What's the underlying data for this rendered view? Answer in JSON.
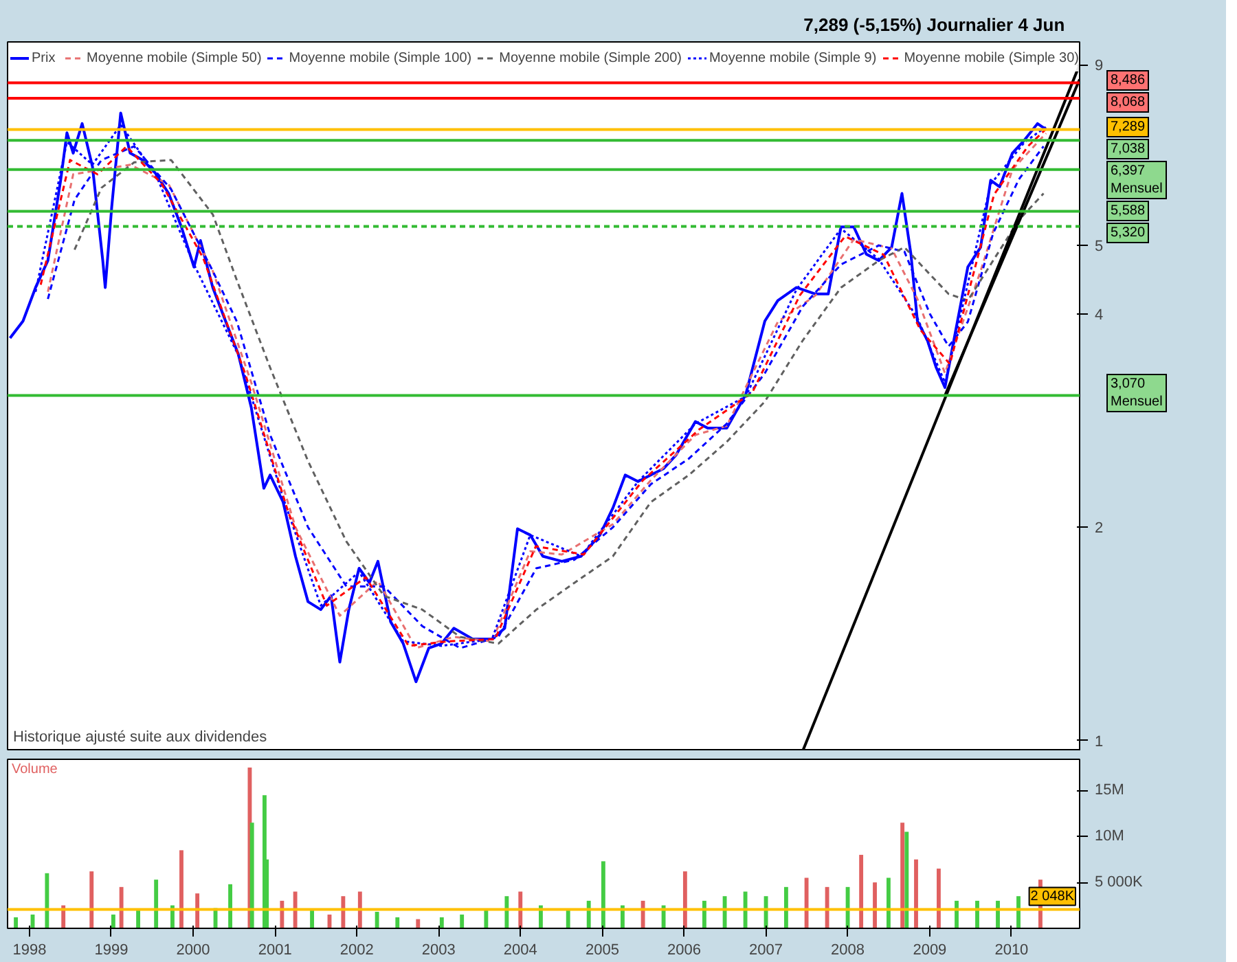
{
  "chart_data": [
    {
      "type": "line",
      "title": "7,289 (-5,15%)   Journalier  4 Jun",
      "log": "y",
      "legend": "top left",
      "grid": false,
      "tick_labels": "y",
      "xlim": [
        "1997-09-25",
        "2010-11-01"
      ],
      "ylim": [
        0.966,
        9.69
      ],
      "yticks": [
        1,
        2,
        4,
        5,
        9
      ],
      "annotations": [
        "Historique ajusté suite aux dividendes"
      ],
      "ref_lines": [
        {
          "axis": "y",
          "value": 8.486,
          "label": "8,486",
          "color": "#ff0000",
          "line_style": "solid"
        },
        {
          "axis": "y",
          "value": 8.068,
          "label": "8,068",
          "color": "#ff0000",
          "line_style": "solid"
        },
        {
          "axis": "y",
          "value": 7.289,
          "label": "7,289",
          "color": "#ffc000",
          "line_style": "solid"
        },
        {
          "axis": "y",
          "value": 7.038,
          "label": "7,038",
          "color": "#33bb33",
          "line_style": "solid"
        },
        {
          "axis": "y",
          "value": 6.397,
          "label": "6,397\nMensuel",
          "color": "#33bb33",
          "line_style": "solid"
        },
        {
          "axis": "y",
          "value": 5.588,
          "label": "5,588",
          "color": "#33bb33",
          "line_style": "solid"
        },
        {
          "axis": "y",
          "value": 5.32,
          "label": "5,320",
          "color": "#33bb33",
          "line_style": "dashed"
        },
        {
          "axis": "y",
          "value": 3.07,
          "label": "3,070\nMensuel",
          "color": "#33bb33",
          "line_style": "solid"
        }
      ],
      "series": [
        {
          "name": "Prix",
          "type": "line",
          "color": "#0000ff",
          "line_style": "solid",
          "x": [
            "1997-10-06",
            "1997-12-03",
            "1998-01-28",
            "1998-03-24",
            "1998-05-20",
            "1998-06-17",
            "1998-07-15",
            "1998-08-24",
            "1998-10-09",
            "1998-11-24",
            "1998-12-05",
            "1999-01-03",
            "1999-02-12",
            "1999-03-26",
            "1999-05-22",
            "1999-07-18",
            "1999-09-14",
            "1999-11-10",
            "2000-01-05",
            "2000-02-03",
            "2000-03-29",
            "2000-05-25",
            "2000-07-21",
            "2000-09-17",
            "2000-11-12",
            "2000-12-10",
            "2001-02-06",
            "2001-04-02",
            "2001-05-28",
            "2001-07-24",
            "2001-09-08",
            "2001-10-17",
            "2001-11-26",
            "2002-01-11",
            "2002-02-26",
            "2002-04-05",
            "2002-06-01",
            "2002-07-27",
            "2002-09-22",
            "2002-11-18",
            "2003-01-14",
            "2003-03-10",
            "2003-06-03",
            "2003-08-27",
            "2003-10-23",
            "2003-12-19",
            "2004-02-14",
            "2004-04-10",
            "2004-07-04",
            "2004-09-28",
            "2004-12-21",
            "2005-02-17",
            "2005-04-13",
            "2005-06-09",
            "2005-08-05",
            "2005-10-01",
            "2005-11-26",
            "2006-02-20",
            "2006-04-16",
            "2006-07-10",
            "2006-10-03",
            "2006-12-27",
            "2007-02-23",
            "2007-05-17",
            "2007-08-10",
            "2007-10-06",
            "2007-12-02",
            "2008-01-28",
            "2008-03-24",
            "2008-05-19",
            "2008-07-15",
            "2008-08-30",
            "2008-10-09",
            "2008-11-07",
            "2008-12-22",
            "2009-01-30",
            "2009-03-10",
            "2009-04-24",
            "2009-06-20",
            "2009-08-16",
            "2009-09-30",
            "2009-11-09",
            "2010-01-05",
            "2010-03-01",
            "2010-04-27",
            "2010-06-04"
          ],
          "values": [
            3.7,
            3.91,
            4.36,
            4.76,
            6.18,
            7.21,
            6.75,
            7.43,
            6.46,
            4.76,
            4.36,
            5.67,
            7.69,
            6.75,
            6.6,
            6.32,
            5.92,
            5.31,
            4.66,
            5.08,
            4.36,
            3.91,
            3.51,
            2.95,
            2.27,
            2.37,
            2.17,
            1.82,
            1.57,
            1.53,
            1.6,
            1.29,
            1.53,
            1.75,
            1.67,
            1.79,
            1.47,
            1.37,
            1.21,
            1.35,
            1.37,
            1.44,
            1.39,
            1.39,
            1.44,
            1.99,
            1.95,
            1.82,
            1.79,
            1.82,
            1.95,
            2.13,
            2.37,
            2.32,
            2.37,
            2.42,
            2.53,
            2.82,
            2.76,
            2.76,
            3.08,
            3.91,
            4.18,
            4.36,
            4.27,
            4.27,
            5.31,
            5.31,
            4.86,
            4.76,
            4.97,
            5.92,
            4.86,
            3.91,
            3.67,
            3.36,
            3.15,
            3.75,
            4.66,
            4.97,
            6.18,
            6.05,
            6.75,
            7.05,
            7.43,
            7.289
          ]
        },
        {
          "name": "Moyenne mobile (Simple 50)",
          "type": "line",
          "color": "#e87070",
          "line_style": "dashed",
          "x": [
            "1998-03-24",
            "1998-07-15",
            "1998-11-24",
            "1999-03-26",
            "1999-09-14",
            "2000-03-29",
            "2000-09-17",
            "2001-04-02",
            "2001-10-17",
            "2002-04-05",
            "2002-09-22",
            "2003-03-10",
            "2003-08-27",
            "2004-02-14",
            "2004-07-04",
            "2005-02-17",
            "2005-08-05",
            "2006-02-20",
            "2006-07-10",
            "2007-02-23",
            "2007-08-10",
            "2008-01-28",
            "2008-07-15",
            "2008-11-07",
            "2009-03-10",
            "2009-08-16",
            "2010-01-05",
            "2010-06-04"
          ],
          "values": [
            4.3,
            6.3,
            6.4,
            6.5,
            6.1,
            4.6,
            3.2,
            2.0,
            1.5,
            1.68,
            1.35,
            1.4,
            1.38,
            1.85,
            1.83,
            2.02,
            2.33,
            2.7,
            2.78,
            3.9,
            4.25,
            5.1,
            4.95,
            4.2,
            3.3,
            4.6,
            6.4,
            7.2
          ]
        },
        {
          "name": "Moyenne mobile (Simple 100)",
          "type": "line",
          "color": "#0000ff",
          "line_style": "dashed",
          "x": [
            "1998-03-24",
            "1998-07-21",
            "1998-11-18",
            "1999-04-13",
            "1999-09-25",
            "2000-03-29",
            "2000-07-15",
            "2000-12-10",
            "2001-05-28",
            "2001-11-15",
            "2002-05-02",
            "2002-10-20",
            "2003-04-07",
            "2003-09-25",
            "2004-03-12",
            "2004-08-30",
            "2005-02-17",
            "2005-08-05",
            "2006-01-22",
            "2006-07-10",
            "2006-12-27",
            "2007-06-14",
            "2007-12-02",
            "2008-05-19",
            "2008-09-10",
            "2009-01-02",
            "2009-03-26",
            "2009-06-20",
            "2009-10-11",
            "2010-02-03",
            "2010-05-24"
          ],
          "values": [
            4.2,
            5.8,
            6.6,
            6.9,
            6.0,
            4.6,
            3.9,
            2.7,
            2.0,
            1.65,
            1.65,
            1.45,
            1.35,
            1.4,
            1.75,
            1.8,
            2.0,
            2.3,
            2.5,
            2.8,
            3.3,
            4.1,
            4.7,
            5.0,
            4.9,
            4.0,
            3.6,
            3.9,
            5.2,
            6.2,
            6.9
          ]
        },
        {
          "name": "Moyenne mobile (Simple 200)",
          "type": "line",
          "color": "#606060",
          "line_style": "dashed",
          "x": [
            "1998-07-21",
            "1998-11-18",
            "1999-04-13",
            "1999-09-25",
            "2000-03-29",
            "2000-07-15",
            "2000-12-10",
            "2001-05-28",
            "2001-11-15",
            "2002-05-02",
            "2002-10-20",
            "2003-04-07",
            "2003-09-25",
            "2004-03-12",
            "2004-08-30",
            "2005-02-17",
            "2005-08-05",
            "2006-01-22",
            "2006-07-10",
            "2006-12-27",
            "2007-06-14",
            "2007-12-02",
            "2008-05-19",
            "2008-09-10",
            "2009-01-02",
            "2009-03-26",
            "2009-06-20",
            "2009-10-11",
            "2010-02-03",
            "2010-05-24"
          ],
          "values": [
            4.93,
            6.03,
            6.55,
            6.6,
            5.53,
            4.46,
            3.36,
            2.48,
            1.91,
            1.6,
            1.53,
            1.4,
            1.37,
            1.53,
            1.67,
            1.82,
            2.17,
            2.37,
            2.64,
            3.01,
            3.67,
            4.36,
            4.76,
            4.97,
            4.55,
            4.27,
            4.18,
            4.76,
            5.43,
            5.92
          ]
        },
        {
          "name": "Moyenne mobile (Simple 9)",
          "type": "line",
          "color": "#0000ff",
          "line_style": "dotted",
          "x": [
            "1998-01-28",
            "1998-06-17",
            "1998-10-09",
            "1999-02-12",
            "1999-07-18",
            "2000-01-05",
            "2000-07-21",
            "2001-02-06",
            "2001-07-24",
            "2002-01-11",
            "2002-07-27",
            "2003-01-14",
            "2003-08-27",
            "2004-02-14",
            "2004-09-28",
            "2005-06-09",
            "2006-02-20",
            "2006-10-03",
            "2007-05-17",
            "2007-12-02",
            "2008-05-19",
            "2008-11-07",
            "2009-03-10",
            "2009-09-30",
            "2010-03-01",
            "2010-06-04"
          ],
          "values": [
            4.3,
            7.0,
            6.5,
            7.4,
            6.3,
            4.7,
            3.5,
            2.2,
            1.55,
            1.73,
            1.38,
            1.36,
            1.39,
            1.95,
            1.82,
            2.32,
            2.8,
            3.06,
            4.33,
            5.28,
            4.78,
            3.95,
            3.2,
            6.1,
            7.0,
            7.35
          ]
        },
        {
          "name": "Moyenne mobile (Simple 30)",
          "type": "line",
          "color": "#ff0000",
          "line_style": "dashed",
          "x": [
            "1998-02-20",
            "1998-07-01",
            "1998-11-01",
            "1999-03-10",
            "1999-08-15",
            "2000-02-15",
            "2000-08-20",
            "2001-03-01",
            "2001-08-20",
            "2002-02-10",
            "2002-08-20",
            "2003-02-10",
            "2003-09-10",
            "2004-03-10",
            "2004-10-10",
            "2005-07-01",
            "2006-03-10",
            "2006-11-01",
            "2007-06-01",
            "2007-12-20",
            "2008-06-10",
            "2008-11-20",
            "2009-04-01",
            "2009-10-15",
            "2010-03-15",
            "2010-06-04"
          ],
          "values": [
            4.4,
            6.6,
            6.3,
            6.9,
            6.1,
            4.8,
            3.3,
            2.1,
            1.55,
            1.7,
            1.36,
            1.38,
            1.39,
            1.88,
            1.83,
            2.33,
            2.75,
            3.1,
            4.25,
            5.15,
            4.85,
            3.8,
            3.4,
            5.9,
            6.9,
            7.3
          ]
        },
        {
          "type": "line",
          "color": "#000000",
          "line_style": "solid",
          "x": [
            "2007-06-14",
            "2010-11-01"
          ],
          "values": [
            0.966,
            9.0
          ]
        },
        {
          "type": "line",
          "color": "#000000",
          "line_style": "solid",
          "x": [
            "2009-03-10",
            "2010-11-01"
          ],
          "values": [
            3.07,
            8.58
          ]
        }
      ]
    },
    {
      "type": "bar",
      "title": "Volume",
      "grid": false,
      "legend": false,
      "xlim": [
        "1997-09-25",
        "2010-11-01"
      ],
      "ylim": [
        0,
        18400000
      ],
      "xticks": [
        {
          "value": "1998-01-01",
          "label": "1998"
        },
        {
          "value": "1999-01-01",
          "label": "1999"
        },
        {
          "value": "2000-01-01",
          "label": "2000"
        },
        {
          "value": "2001-01-01",
          "label": "2001"
        },
        {
          "value": "2002-01-01",
          "label": "2002"
        },
        {
          "value": "2003-01-01",
          "label": "2003"
        },
        {
          "value": "2004-01-01",
          "label": "2004"
        },
        {
          "value": "2005-01-01",
          "label": "2005"
        },
        {
          "value": "2006-01-01",
          "label": "2006"
        },
        {
          "value": "2007-01-01",
          "label": "2007"
        },
        {
          "value": "2008-01-01",
          "label": "2008"
        },
        {
          "value": "2009-01-01",
          "label": "2009"
        },
        {
          "value": "2010-01-01",
          "label": "2010"
        }
      ],
      "yticks": [
        {
          "value": 5000000,
          "label": "5 000K"
        },
        {
          "value": 10000000,
          "label": "10M"
        },
        {
          "value": 15000000,
          "label": "15M"
        }
      ],
      "ref_lines": [
        {
          "axis": "y",
          "value": 2048000,
          "label": "2 048K",
          "color": "#ffc000",
          "line_style": "solid"
        }
      ],
      "series": [
        {
          "x": [
            "1997-11-01",
            "1998-01-15",
            "1998-03-20",
            "1998-06-01",
            "1998-10-05",
            "1999-01-10",
            "1999-02-15",
            "1999-05-01",
            "1999-07-20",
            "1999-10-01",
            "1999-11-10",
            "2000-01-20",
            "2000-04-10",
            "2000-06-15",
            "2000-09-10",
            "2000-09-20",
            "2000-11-15",
            "2000-11-25",
            "2001-02-01",
            "2001-04-01",
            "2001-06-15",
            "2001-09-01",
            "2001-11-01",
            "2002-01-15",
            "2002-04-01",
            "2002-07-01",
            "2002-10-01",
            "2003-01-15",
            "2003-04-15",
            "2003-08-01",
            "2003-11-01",
            "2004-01-01",
            "2004-04-01",
            "2004-08-01",
            "2004-11-01",
            "2005-01-05",
            "2005-04-01",
            "2005-07-01",
            "2005-10-01",
            "2006-01-05",
            "2006-04-01",
            "2006-07-01",
            "2006-10-01",
            "2007-01-01",
            "2007-04-01",
            "2007-07-01",
            "2007-10-01",
            "2008-01-01",
            "2008-03-01",
            "2008-05-01",
            "2008-07-01",
            "2008-09-01",
            "2008-09-20",
            "2008-11-01",
            "2009-02-10",
            "2009-05-01",
            "2009-08-01",
            "2009-11-01",
            "2010-02-01",
            "2010-05-10"
          ],
          "values": [
            1200000,
            1500000,
            6000000,
            2500000,
            6200000,
            1500000,
            4500000,
            2000000,
            5300000,
            2500000,
            8500000,
            3800000,
            2200000,
            4800000,
            17500000,
            11500000,
            14500000,
            7500000,
            3000000,
            4000000,
            2000000,
            1500000,
            3500000,
            4000000,
            1800000,
            1200000,
            1000000,
            1200000,
            1500000,
            2000000,
            3500000,
            4000000,
            2500000,
            2000000,
            3000000,
            7300000,
            2500000,
            3000000,
            2500000,
            6200000,
            3000000,
            3500000,
            4000000,
            3500000,
            4500000,
            5500000,
            4500000,
            4500000,
            8000000,
            5000000,
            5500000,
            11500000,
            10500000,
            7500000,
            6500000,
            3000000,
            3000000,
            3000000,
            3500000,
            5300000
          ],
          "colors": [
            "#44cc44",
            "#44cc44",
            "#44cc44",
            "#e06060",
            "#e06060",
            "#44cc44",
            "#e06060",
            "#44cc44",
            "#44cc44",
            "#44cc44",
            "#e06060",
            "#e06060",
            "#44cc44",
            "#44cc44",
            "#e06060",
            "#44cc44",
            "#44cc44",
            "#44cc44",
            "#e06060",
            "#e06060",
            "#44cc44",
            "#e06060",
            "#e06060",
            "#e06060",
            "#44cc44",
            "#44cc44",
            "#e06060",
            "#44cc44",
            "#44cc44",
            "#44cc44",
            "#44cc44",
            "#e06060",
            "#44cc44",
            "#44cc44",
            "#44cc44",
            "#44cc44",
            "#44cc44",
            "#e06060",
            "#44cc44",
            "#e06060",
            "#44cc44",
            "#44cc44",
            "#44cc44",
            "#44cc44",
            "#44cc44",
            "#e06060",
            "#e06060",
            "#44cc44",
            "#e06060",
            "#e06060",
            "#44cc44",
            "#e06060",
            "#44cc44",
            "#e06060",
            "#e06060",
            "#44cc44",
            "#44cc44",
            "#44cc44",
            "#44cc44",
            "#e06060"
          ]
        }
      ]
    }
  ]
}
